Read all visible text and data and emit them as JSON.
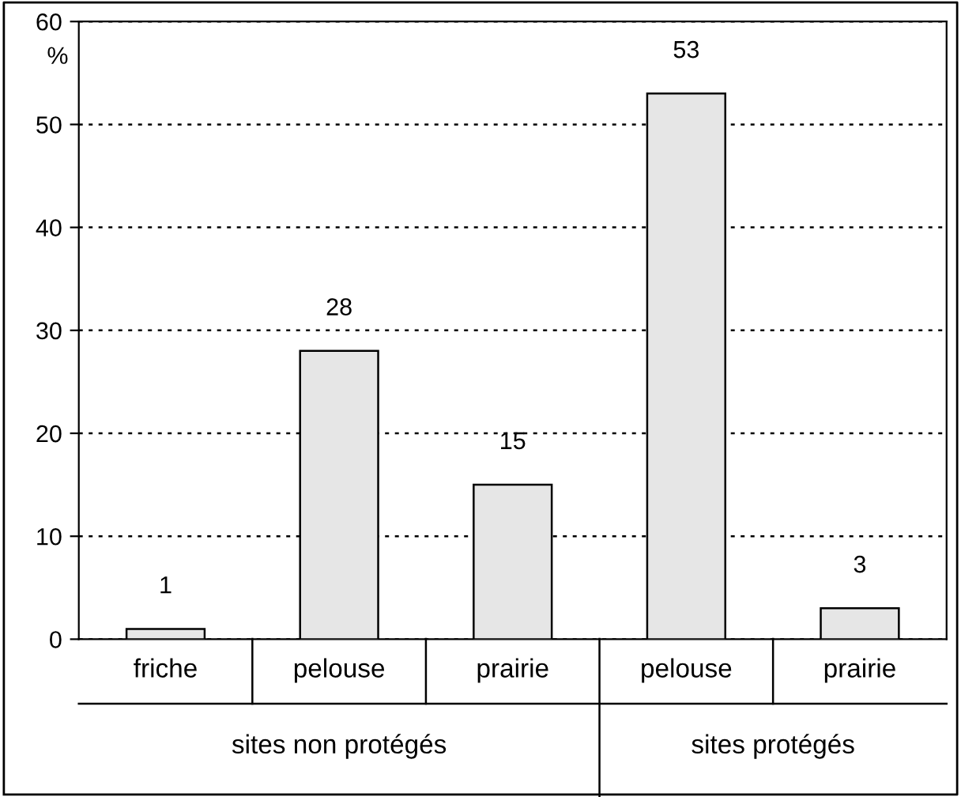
{
  "chart_data": {
    "type": "bar",
    "categories": [
      "friche",
      "pelouse",
      "prairie",
      "pelouse",
      "prairie"
    ],
    "values": [
      1,
      28,
      15,
      53,
      3
    ],
    "color": "#e6e6e6",
    "ylabel": "%",
    "ylim": [
      0,
      60
    ],
    "yticks": [
      0,
      10,
      20,
      30,
      40,
      50,
      60
    ],
    "grid": "y",
    "data_labels": true,
    "annotations": [
      "sites non protégés",
      "sites protégés"
    ]
  }
}
